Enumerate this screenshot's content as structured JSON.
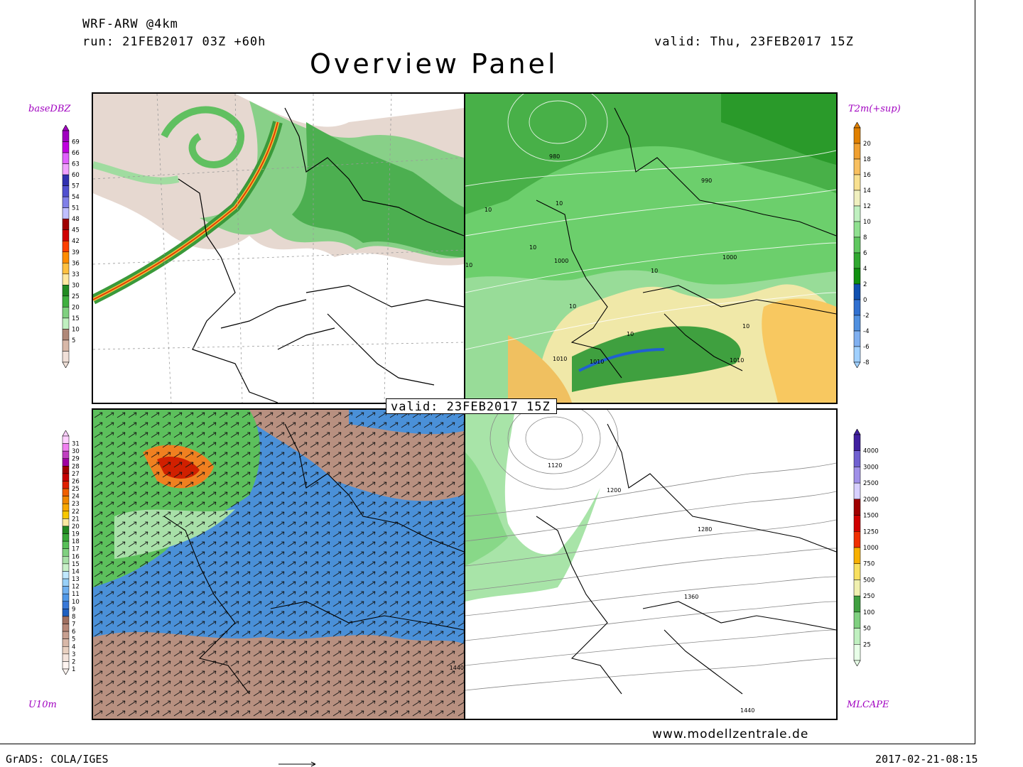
{
  "header": {
    "model": "WRF-ARW @4km",
    "run": "run: 21FEB2017 03Z +60h",
    "valid": "valid: Thu, 23FEB2017 15Z",
    "title": "Overview Panel"
  },
  "center_valid": "valid: 23FEB2017 15Z",
  "panels": {
    "top_left": {
      "name": "baseDBZ",
      "colorbar": {
        "labels": [
          "69",
          "66",
          "63",
          "60",
          "57",
          "54",
          "51",
          "48",
          "45",
          "42",
          "39",
          "36",
          "33",
          "30",
          "25",
          "20",
          "15",
          "10",
          "5"
        ],
        "colors": [
          "#a000c0",
          "#c000e0",
          "#e060ff",
          "#f0a0ff",
          "#3030b0",
          "#5050d0",
          "#8080e8",
          "#c0c0ff",
          "#a00000",
          "#d00000",
          "#ff4000",
          "#ff8c00",
          "#ffc040",
          "#ffe8a0",
          "#228b22",
          "#40b040",
          "#80d080",
          "#c0f0c0",
          "#b08878",
          "#d8b8a8",
          "#f0e0d8"
        ]
      },
      "contour_labels": []
    },
    "top_right": {
      "name": "T2m(+sup)",
      "colorbar": {
        "labels": [
          "20",
          "18",
          "16",
          "14",
          "12",
          "10",
          "8",
          "6",
          "4",
          "2",
          "0",
          "-2",
          "-4",
          "-6",
          "-8"
        ],
        "colors": [
          "#e08000",
          "#f0a030",
          "#f8c060",
          "#f8e090",
          "#f0f0c0",
          "#c0f0c0",
          "#90e090",
          "#60c860",
          "#30a830",
          "#109010",
          "#1050b0",
          "#3070d0",
          "#5090e0",
          "#80b0f0",
          "#a0d0ff"
        ]
      },
      "contour_labels": [
        "980",
        "990",
        "1000",
        "1000",
        "1010",
        "1010",
        "1010",
        "10",
        "10",
        "10",
        "10",
        "10",
        "10",
        "10",
        "10"
      ]
    },
    "bottom_left": {
      "name": "U10m",
      "colorbar": {
        "labels": [
          "31",
          "30",
          "29",
          "28",
          "27",
          "26",
          "25",
          "24",
          "23",
          "22",
          "21",
          "20",
          "19",
          "18",
          "17",
          "16",
          "15",
          "14",
          "13",
          "12",
          "11",
          "10",
          "9",
          "8",
          "7",
          "6",
          "5",
          "4",
          "3",
          "2",
          "1"
        ],
        "colors": [
          "#ffd0ff",
          "#f080f0",
          "#c040c0",
          "#a000a0",
          "#a00000",
          "#c80000",
          "#e02000",
          "#f06000",
          "#f08800",
          "#f8a800",
          "#f8c800",
          "#f8e8a0",
          "#208820",
          "#38a838",
          "#58c058",
          "#80d080",
          "#a8e0a8",
          "#c8f0c8",
          "#c0e8ff",
          "#98d0f8",
          "#70b0f0",
          "#5098e8",
          "#3878d8",
          "#2060c0",
          "#a07060",
          "#b88878",
          "#c8a090",
          "#d8b8a8",
          "#e8d0c0",
          "#f4e4dc",
          "#fff4f0"
        ]
      },
      "contour_labels": [
        "1440"
      ]
    },
    "bottom_right": {
      "name": "MLCAPE",
      "colorbar": {
        "labels": [
          "4000",
          "3000",
          "2500",
          "2000",
          "1500",
          "1250",
          "1000",
          "750",
          "500",
          "250",
          "100",
          "50",
          "25"
        ],
        "colors": [
          "#4020a0",
          "#7060d0",
          "#a090e8",
          "#d8d0ff",
          "#a00000",
          "#d00000",
          "#f03000",
          "#f8b000",
          "#f8e060",
          "#f0f0b0",
          "#40a040",
          "#80d080",
          "#c0f0c0",
          "#e8ffe8"
        ]
      },
      "contour_labels": [
        "1120",
        "1200",
        "1280",
        "1360",
        "1440"
      ]
    }
  },
  "footer": {
    "left": "GrADS: COLA/IGES",
    "right": "2017-02-21-08:15",
    "site": "www.modellzentrale.de"
  }
}
